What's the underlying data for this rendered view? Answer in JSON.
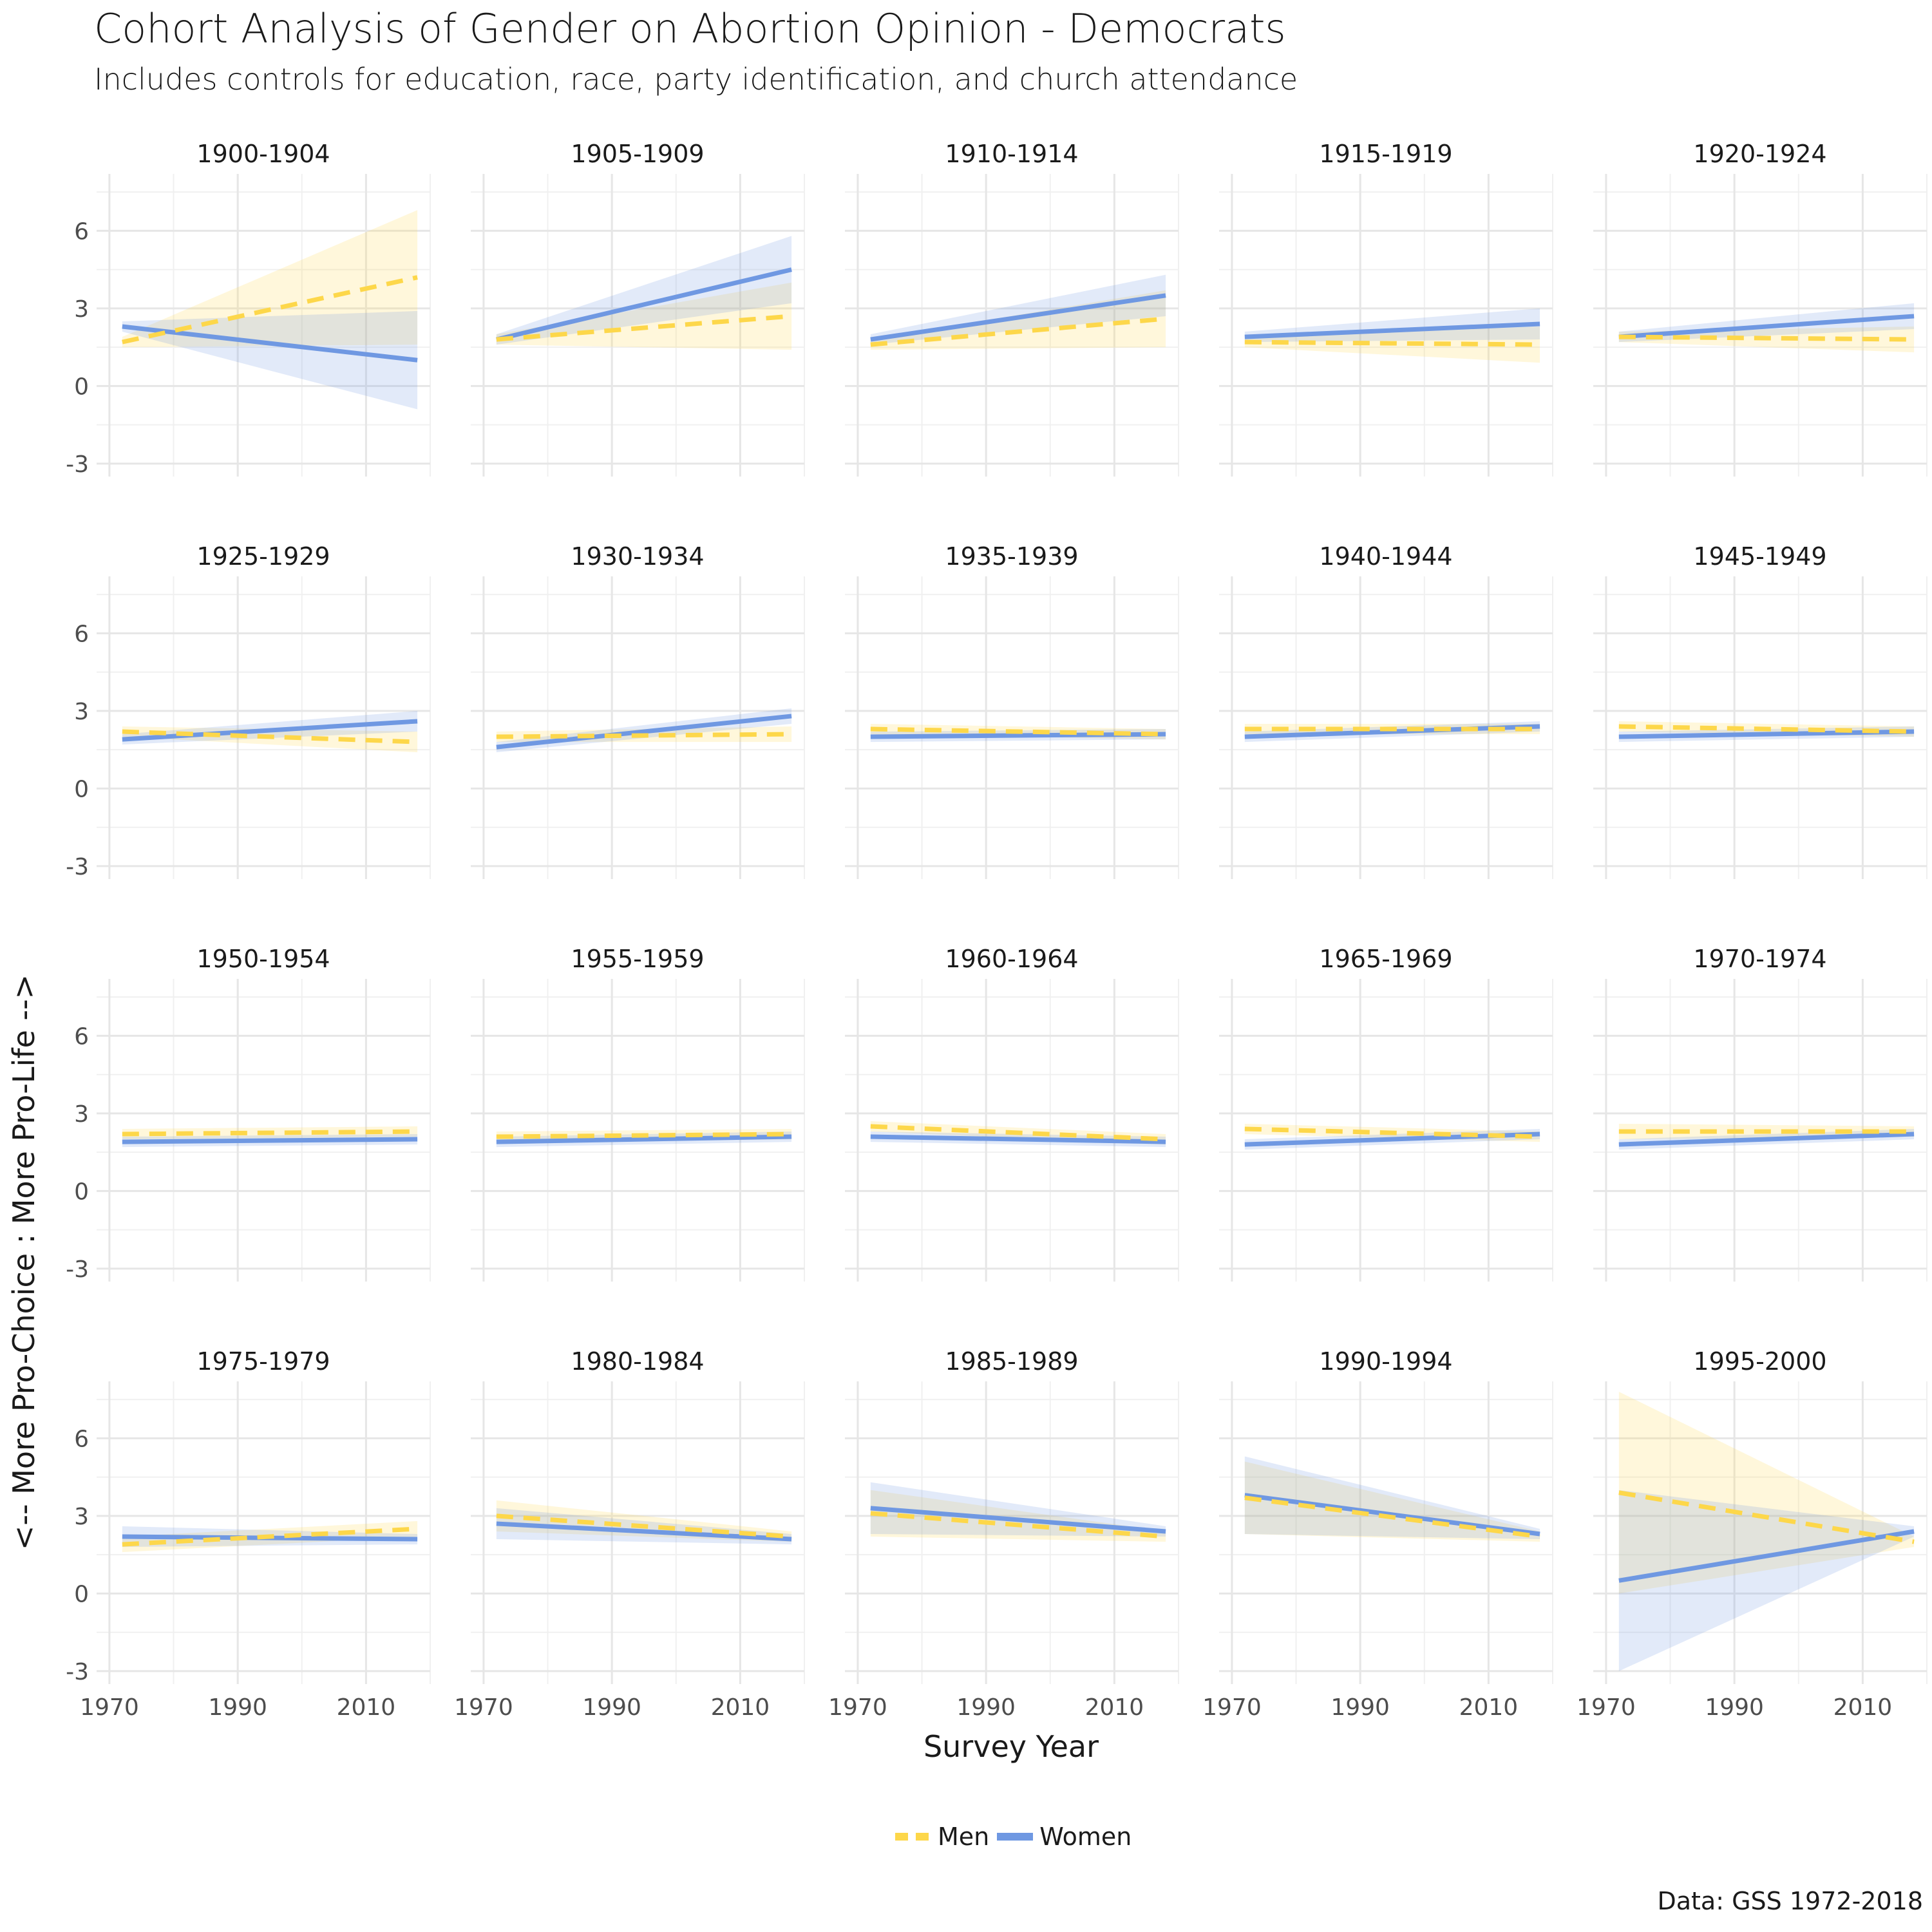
{
  "chart_data": {
    "type": "line",
    "title": "Cohort Analysis of Gender on Abortion Opinion - Democrats",
    "subtitle": "Includes controls for education, race, party identification, and church attendance",
    "xlabel": "Survey Year",
    "ylabel": "<-- More Pro-Choice : More Pro-Life -->",
    "caption": "Data: GSS 1972-2018",
    "xlim": [
      1968,
      2020
    ],
    "ylim": [
      -3.5,
      8.2
    ],
    "x_ticks": [
      1970,
      1990,
      2010
    ],
    "y_ticks": [
      -3,
      0,
      3,
      6
    ],
    "grid": true,
    "legend_position": "bottom",
    "series_style": {
      "Men": {
        "color": "#fdd74a",
        "dash": true
      },
      "Women": {
        "color": "#6f98e2",
        "dash": false
      }
    },
    "legend": [
      "Men",
      "Women"
    ],
    "panels": [
      {
        "cohort": "1900-1904",
        "x": [
          1972,
          2018
        ],
        "men": [
          1.7,
          4.2
        ],
        "men_lo": [
          1.5,
          1.6
        ],
        "men_hi": [
          1.9,
          6.8
        ],
        "women": [
          2.3,
          1.0
        ],
        "women_lo": [
          2.1,
          -0.9
        ],
        "women_hi": [
          2.5,
          2.9
        ]
      },
      {
        "cohort": "1905-1909",
        "x": [
          1972,
          2018
        ],
        "men": [
          1.8,
          2.7
        ],
        "men_lo": [
          1.6,
          1.4
        ],
        "men_hi": [
          2.0,
          4.0
        ],
        "women": [
          1.8,
          4.5
        ],
        "women_lo": [
          1.6,
          3.2
        ],
        "women_hi": [
          2.0,
          5.8
        ]
      },
      {
        "cohort": "1910-1914",
        "x": [
          1972,
          2018
        ],
        "men": [
          1.6,
          2.6
        ],
        "men_lo": [
          1.4,
          1.5
        ],
        "men_hi": [
          1.8,
          3.7
        ],
        "women": [
          1.8,
          3.5
        ],
        "women_lo": [
          1.6,
          2.7
        ],
        "women_hi": [
          2.0,
          4.3
        ]
      },
      {
        "cohort": "1915-1919",
        "x": [
          1972,
          2018
        ],
        "men": [
          1.7,
          1.6
        ],
        "men_lo": [
          1.5,
          0.9
        ],
        "men_hi": [
          1.9,
          2.3
        ],
        "women": [
          1.9,
          2.4
        ],
        "women_lo": [
          1.7,
          1.8
        ],
        "women_hi": [
          2.1,
          3.0
        ]
      },
      {
        "cohort": "1920-1924",
        "x": [
          1972,
          2018
        ],
        "men": [
          1.9,
          1.8
        ],
        "men_lo": [
          1.7,
          1.3
        ],
        "men_hi": [
          2.1,
          2.3
        ],
        "women": [
          1.9,
          2.7
        ],
        "women_lo": [
          1.7,
          2.2
        ],
        "women_hi": [
          2.1,
          3.2
        ]
      },
      {
        "cohort": "1925-1929",
        "x": [
          1972,
          2018
        ],
        "men": [
          2.2,
          1.8
        ],
        "men_lo": [
          2.0,
          1.4
        ],
        "men_hi": [
          2.4,
          2.2
        ],
        "women": [
          1.9,
          2.6
        ],
        "women_lo": [
          1.7,
          2.2
        ],
        "women_hi": [
          2.1,
          3.0
        ]
      },
      {
        "cohort": "1930-1934",
        "x": [
          1972,
          2018
        ],
        "men": [
          2.0,
          2.1
        ],
        "men_lo": [
          1.8,
          1.8
        ],
        "men_hi": [
          2.2,
          2.4
        ],
        "women": [
          1.6,
          2.8
        ],
        "women_lo": [
          1.4,
          2.5
        ],
        "women_hi": [
          1.8,
          3.1
        ]
      },
      {
        "cohort": "1935-1939",
        "x": [
          1972,
          2018
        ],
        "men": [
          2.3,
          2.1
        ],
        "men_lo": [
          2.1,
          1.9
        ],
        "men_hi": [
          2.5,
          2.3
        ],
        "women": [
          2.0,
          2.1
        ],
        "women_lo": [
          1.8,
          1.9
        ],
        "women_hi": [
          2.2,
          2.3
        ]
      },
      {
        "cohort": "1940-1944",
        "x": [
          1972,
          2018
        ],
        "men": [
          2.3,
          2.3
        ],
        "men_lo": [
          2.1,
          2.1
        ],
        "men_hi": [
          2.5,
          2.5
        ],
        "women": [
          2.0,
          2.4
        ],
        "women_lo": [
          1.8,
          2.2
        ],
        "women_hi": [
          2.2,
          2.6
        ]
      },
      {
        "cohort": "1945-1949",
        "x": [
          1972,
          2018
        ],
        "men": [
          2.4,
          2.2
        ],
        "men_lo": [
          2.2,
          2.0
        ],
        "men_hi": [
          2.6,
          2.4
        ],
        "women": [
          2.0,
          2.2
        ],
        "women_lo": [
          1.8,
          2.0
        ],
        "women_hi": [
          2.2,
          2.4
        ]
      },
      {
        "cohort": "1950-1954",
        "x": [
          1972,
          2018
        ],
        "men": [
          2.2,
          2.3
        ],
        "men_lo": [
          2.0,
          2.1
        ],
        "men_hi": [
          2.4,
          2.5
        ],
        "women": [
          1.9,
          2.0
        ],
        "women_lo": [
          1.7,
          1.8
        ],
        "women_hi": [
          2.1,
          2.2
        ]
      },
      {
        "cohort": "1955-1959",
        "x": [
          1972,
          2018
        ],
        "men": [
          2.1,
          2.2
        ],
        "men_lo": [
          1.9,
          2.0
        ],
        "men_hi": [
          2.3,
          2.4
        ],
        "women": [
          1.9,
          2.1
        ],
        "women_lo": [
          1.7,
          1.9
        ],
        "women_hi": [
          2.1,
          2.3
        ]
      },
      {
        "cohort": "1960-1964",
        "x": [
          1972,
          2018
        ],
        "men": [
          2.5,
          2.0
        ],
        "men_lo": [
          2.3,
          1.8
        ],
        "men_hi": [
          2.7,
          2.2
        ],
        "women": [
          2.1,
          1.9
        ],
        "women_lo": [
          1.9,
          1.7
        ],
        "women_hi": [
          2.3,
          2.1
        ]
      },
      {
        "cohort": "1965-1969",
        "x": [
          1972,
          2018
        ],
        "men": [
          2.4,
          2.1
        ],
        "men_lo": [
          2.2,
          1.9
        ],
        "men_hi": [
          2.6,
          2.3
        ],
        "women": [
          1.8,
          2.2
        ],
        "women_lo": [
          1.6,
          2.0
        ],
        "women_hi": [
          2.0,
          2.4
        ]
      },
      {
        "cohort": "1970-1974",
        "x": [
          1972,
          2018
        ],
        "men": [
          2.3,
          2.3
        ],
        "men_lo": [
          2.0,
          2.1
        ],
        "men_hi": [
          2.6,
          2.5
        ],
        "women": [
          1.8,
          2.2
        ],
        "women_lo": [
          1.6,
          2.0
        ],
        "women_hi": [
          2.0,
          2.4
        ]
      },
      {
        "cohort": "1975-1979",
        "x": [
          1972,
          2018
        ],
        "men": [
          1.9,
          2.5
        ],
        "men_lo": [
          1.6,
          2.2
        ],
        "men_hi": [
          2.2,
          2.8
        ],
        "women": [
          2.2,
          2.1
        ],
        "women_lo": [
          1.8,
          1.9
        ],
        "women_hi": [
          2.6,
          2.3
        ]
      },
      {
        "cohort": "1980-1984",
        "x": [
          1972,
          2018
        ],
        "men": [
          3.0,
          2.2
        ],
        "men_lo": [
          2.4,
          2.0
        ],
        "men_hi": [
          3.6,
          2.4
        ],
        "women": [
          2.7,
          2.1
        ],
        "women_lo": [
          2.1,
          1.9
        ],
        "women_hi": [
          3.3,
          2.3
        ]
      },
      {
        "cohort": "1985-1989",
        "x": [
          1972,
          2018
        ],
        "men": [
          3.1,
          2.2
        ],
        "men_lo": [
          2.2,
          2.0
        ],
        "men_hi": [
          4.0,
          2.4
        ],
        "women": [
          3.3,
          2.4
        ],
        "women_lo": [
          2.3,
          2.2
        ],
        "women_hi": [
          4.3,
          2.6
        ]
      },
      {
        "cohort": "1990-1994",
        "x": [
          1972,
          2018
        ],
        "men": [
          3.7,
          2.2
        ],
        "men_lo": [
          2.3,
          2.0
        ],
        "men_hi": [
          5.1,
          2.4
        ],
        "women": [
          3.8,
          2.3
        ],
        "women_lo": [
          2.3,
          2.1
        ],
        "women_hi": [
          5.3,
          2.5
        ]
      },
      {
        "cohort": "1995-2000",
        "x": [
          1972,
          2018
        ],
        "men": [
          3.9,
          2.0
        ],
        "men_lo": [
          0.0,
          1.8
        ],
        "men_hi": [
          7.8,
          2.2
        ],
        "women": [
          0.5,
          2.4
        ],
        "women_lo": [
          -3.0,
          2.2
        ],
        "women_hi": [
          4.0,
          2.6
        ]
      }
    ]
  }
}
